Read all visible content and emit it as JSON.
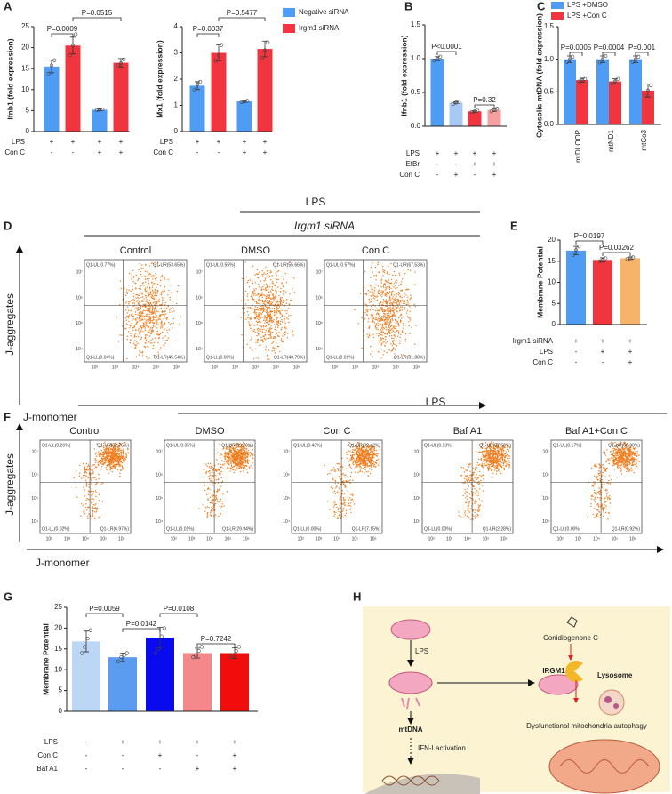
{
  "chart_data": [
    {
      "type": "bar",
      "ylabel": "Ifnb1 (fold expression)",
      "ylim": [
        0,
        25
      ],
      "yticks": [
        0,
        5,
        10,
        15,
        20,
        25
      ],
      "values": [
        15.5,
        20.5,
        5.2,
        16.4
      ],
      "errors": [
        1.5,
        2,
        0.2,
        1
      ],
      "points": [
        [
          13.8,
          15.8,
          17
        ],
        [
          18.2,
          20.5,
          23.2
        ],
        [
          5.1,
          5.2,
          5.3
        ],
        [
          15.8,
          16.3,
          17.2
        ]
      ],
      "colors": [
        "#4f9cf5",
        "#f0353f",
        "#4f9cf5",
        "#f0353f"
      ],
      "conditions": [
        {
          "name": "LPS",
          "signs": [
            "+",
            "+",
            "+",
            "+"
          ]
        },
        {
          "name": "Con C",
          "signs": [
            "-",
            "-",
            "+",
            "+"
          ]
        }
      ],
      "p_values": [
        "P=0.0009",
        "P=0.0515"
      ]
    },
    {
      "type": "bar",
      "ylabel": "Mx1 (fold expression)",
      "ylim": [
        0,
        4
      ],
      "yticks": [
        0,
        1,
        2,
        3,
        4
      ],
      "values": [
        1.75,
        3.0,
        1.15,
        3.15
      ],
      "errors": [
        0.15,
        0.3,
        0.03,
        0.3
      ],
      "points": [
        [
          1.6,
          1.8,
          1.9
        ],
        [
          2.7,
          2.9,
          3.3
        ],
        [
          1.12,
          1.15,
          1.17
        ],
        [
          2.8,
          3.1,
          3.4
        ]
      ],
      "colors": [
        "#4f9cf5",
        "#f0353f",
        "#4f9cf5",
        "#f0353f"
      ],
      "conditions": [
        {
          "name": "LPS",
          "signs": [
            "+",
            "+",
            "+",
            "+"
          ]
        },
        {
          "name": "Con C",
          "signs": [
            "-",
            "-",
            "+",
            "+"
          ]
        }
      ],
      "p_values": [
        "P=0.0037",
        "P=0.5477"
      ],
      "legend": [
        {
          "name": "Negative siRNA",
          "color": "#4f9cf5"
        },
        {
          "name": "Irgm1 siRNA",
          "color": "#f0353f"
        }
      ]
    },
    {
      "type": "bar",
      "ylabel": "Ifnb1 (fold expression)",
      "ylim": [
        0,
        1.5
      ],
      "yticks": [
        {
          "value": 0,
          "label": "0.0"
        },
        0.5,
        {
          "value": 1,
          "label": "1.0"
        },
        1.5
      ],
      "values": [
        1.0,
        0.35,
        0.22,
        0.24
      ],
      "errors": [
        0.03,
        0.01,
        0.01,
        0.02
      ],
      "points": [
        [
          0.97,
          1.0,
          1.03
        ],
        [
          0.33,
          0.35,
          0.36
        ],
        [
          0.21,
          0.22,
          0.23
        ],
        [
          0.22,
          0.24,
          0.26
        ]
      ],
      "colors": [
        "#4f9cf5",
        "#a9c9f5",
        "#f0353f",
        "#f4a0a0"
      ],
      "conditions": [
        {
          "name": "LPS",
          "signs": [
            "+",
            "+",
            "+",
            "+"
          ]
        },
        {
          "name": "EtBr",
          "signs": [
            "-",
            "-",
            "+",
            "+"
          ]
        },
        {
          "name": "Con C",
          "signs": [
            "-",
            "+",
            "-",
            "+"
          ]
        }
      ],
      "p_values": [
        "P<0.0001",
        "P=0.32"
      ]
    },
    {
      "type": "grouped-bar",
      "ylabel": "Cytosolic mtDNA (fold expression)",
      "ylim": [
        0,
        1.5
      ],
      "yticks": [
        {
          "value": 0,
          "label": "0.0"
        },
        0.5,
        {
          "value": 1,
          "label": "1.0"
        },
        1.5
      ],
      "categories": [
        "mtDLOOP",
        "mtND1",
        "mtCo3"
      ],
      "series": [
        {
          "name": "LPS +DMSO",
          "color": "#4f9cf5",
          "values": [
            1.0,
            1.0,
            1.0
          ],
          "errors": [
            0.05,
            0.05,
            0.05
          ],
          "points": [
            [
              0.96,
              1.0,
              1.04
            ],
            [
              0.95,
              1.0,
              1.05
            ],
            [
              0.96,
              1.0,
              1.04
            ]
          ]
        },
        {
          "name": "LPS +Con C",
          "color": "#f0353f",
          "values": [
            0.68,
            0.66,
            0.52
          ],
          "errors": [
            0.03,
            0.04,
            0.1
          ],
          "points": [
            [
              0.66,
              0.68,
              0.7
            ],
            [
              0.63,
              0.66,
              0.7
            ],
            [
              0.44,
              0.52,
              0.6
            ]
          ]
        }
      ],
      "p_values": [
        "P=0.0005",
        "P=0.0004",
        "P=0.001"
      ]
    },
    {
      "type": "bar",
      "ylabel": "Membrane Potential",
      "ylim": [
        0,
        20
      ],
      "yticks": [
        0,
        5,
        10,
        15,
        20
      ],
      "values": [
        17.5,
        15.3,
        15.7
      ],
      "errors": [
        1,
        0.5,
        0.3
      ],
      "points": [
        [
          16.5,
          17.6,
          18.5
        ],
        [
          15,
          15.3,
          15.7
        ],
        [
          15.5,
          15.7,
          15.9
        ]
      ],
      "colors": [
        "#4f9cf5",
        "#f0353f",
        "#f7b36a"
      ],
      "conditions": [
        {
          "name": "Irgm1 siRNA",
          "signs": [
            "+",
            "+",
            "+"
          ]
        },
        {
          "name": "LPS",
          "signs": [
            "-",
            "+",
            "+"
          ]
        },
        {
          "name": "Con C",
          "signs": [
            "-",
            "-",
            "+"
          ]
        }
      ],
      "p_values": [
        "P=0.0197",
        "P=0.03262"
      ]
    },
    {
      "type": "bar",
      "ylabel": "Membrane Potential",
      "ylim": [
        0,
        25
      ],
      "yticks": [
        0,
        5,
        10,
        15,
        20,
        25
      ],
      "values": [
        16.8,
        13,
        17.7,
        14,
        14
      ],
      "errors": [
        2.5,
        1,
        2.5,
        1.2,
        1.3
      ],
      "points": [
        [
          14,
          15.5,
          17.5,
          19.5
        ],
        [
          12,
          13,
          13.5,
          14
        ],
        [
          14,
          15,
          18,
          20
        ],
        [
          13,
          13.5,
          14.5,
          15.5
        ],
        [
          13,
          13.5,
          14.5,
          15.5
        ]
      ],
      "colors": [
        "#bcd7f5",
        "#5b9bf0",
        "#0a0aee",
        "#f5888a",
        "#f20d0d"
      ],
      "conditions": [
        {
          "name": "LPS",
          "signs": [
            "-",
            "+",
            "+",
            "+",
            "+"
          ]
        },
        {
          "name": "Con C",
          "signs": [
            "-",
            "-",
            "+",
            "-",
            "+"
          ]
        },
        {
          "name": "Baf A1",
          "signs": [
            "-",
            "-",
            "-",
            "+",
            "+"
          ]
        }
      ],
      "p_values": [
        "P=0.0059",
        "P=0.0142",
        "P=0.0108",
        "P=0.7242"
      ]
    }
  ],
  "figure": {
    "letters": [
      "A",
      "B",
      "C",
      "D",
      "E",
      "F",
      "G",
      "H"
    ],
    "flow_xticks": [
      "10²",
      "10³",
      "10⁴",
      "10⁵",
      "10⁶"
    ],
    "flow_yticks": [
      "10⁴",
      "10⁵",
      "10⁶",
      "10⁷"
    ],
    "D": {
      "treatment": "LPS",
      "sirna": "Irgm1 siRNA",
      "y_axis": "J-aggregates",
      "x_axis": "J-monomer",
      "panels": [
        {
          "title": "Control",
          "quadrants": [
            "Q1-UL(0.77%)",
            "Q1-UR(53.65%)",
            "Q1-LL(0.04%)",
            "Q1-LR(45.54%)"
          ]
        },
        {
          "title": "DMSO",
          "quadrants": [
            "Q1-UL(0.55%)",
            "Q1-UR(55.66%)",
            "Q1-LL(0.00%)",
            "Q1-LR(43.79%)"
          ]
        },
        {
          "title": "Con C",
          "quadrants": [
            "Q1-UL(0.57%)",
            "Q1-UR(67.53%)",
            "Q1-LL(0.01%)",
            "Q1-LR(31.88%)"
          ]
        }
      ]
    },
    "F": {
      "treatment": "LPS",
      "y_axis": "J-aggregates",
      "x_axis": "J-monomer",
      "panels": [
        {
          "title": "Control",
          "quadrants": [
            "Q1-UL(0.26%)",
            "Q1-UR(92.75%)",
            "Q1-LL(0.02%)",
            "Q1-LR(6.97%)"
          ]
        },
        {
          "title": "DMSO",
          "quadrants": [
            "Q1-UL(0.35%)",
            "Q1-UR(69.70%)",
            "Q1-LL(0.01%)",
            "Q1-LR(29.94%)"
          ]
        },
        {
          "title": "Con C",
          "quadrants": [
            "Q1-UL(0.43%)",
            "Q1-UR(92.42%)",
            "Q1-LL(0.00%)",
            "Q1-LR(7.15%)"
          ]
        },
        {
          "title": "Baf A1",
          "quadrants": [
            "Q1-UL(0.13%)",
            "Q1-UR(97.59%)",
            "Q1-LL(0.00%)",
            "Q1-LR(2.28%)"
          ]
        },
        {
          "title": "Baf A1+Con C",
          "quadrants": [
            "Q1-UL(0.17%)",
            "Q1-UR(98.90%)",
            "Q1-LL(0.00%)",
            "Q1-LR(0.92%)"
          ]
        }
      ]
    },
    "H": {
      "lps": "LPS",
      "mtdna": "mtDNA",
      "ifn": "IFN-I activation",
      "drug": "Conidiogenone C",
      "irgm1": "IRGM1",
      "lysosome": "Lysosome",
      "autophagy": "Dysfunctional mitochondria autophagy"
    }
  }
}
